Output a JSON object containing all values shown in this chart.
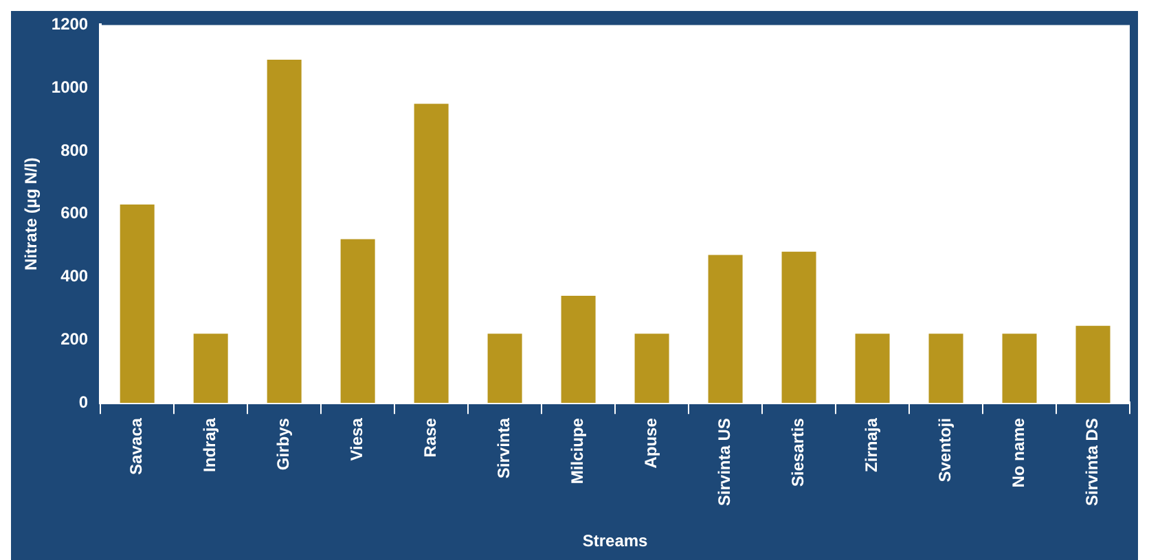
{
  "chart_data": {
    "type": "bar",
    "xlabel": "Streams",
    "ylabel": "Nitrate (µg N/l)",
    "categories": [
      "Savaca",
      "Indraja",
      "Girbys",
      "Viesa",
      "Rase",
      "Sirvinta",
      "Milciupe",
      "Apuse",
      "Sirvinta US",
      "Siesartis",
      "Zirnaja",
      "Sventoji",
      "No name",
      "Sirvinta DS"
    ],
    "values": [
      630,
      220,
      1090,
      520,
      950,
      220,
      340,
      220,
      470,
      480,
      220,
      220,
      220,
      245
    ],
    "color": "#b8961e",
    "ylim": [
      0,
      1200
    ],
    "yticks": [
      0,
      200,
      400,
      600,
      800,
      1000,
      1200
    ],
    "grid": false,
    "legend": false
  }
}
